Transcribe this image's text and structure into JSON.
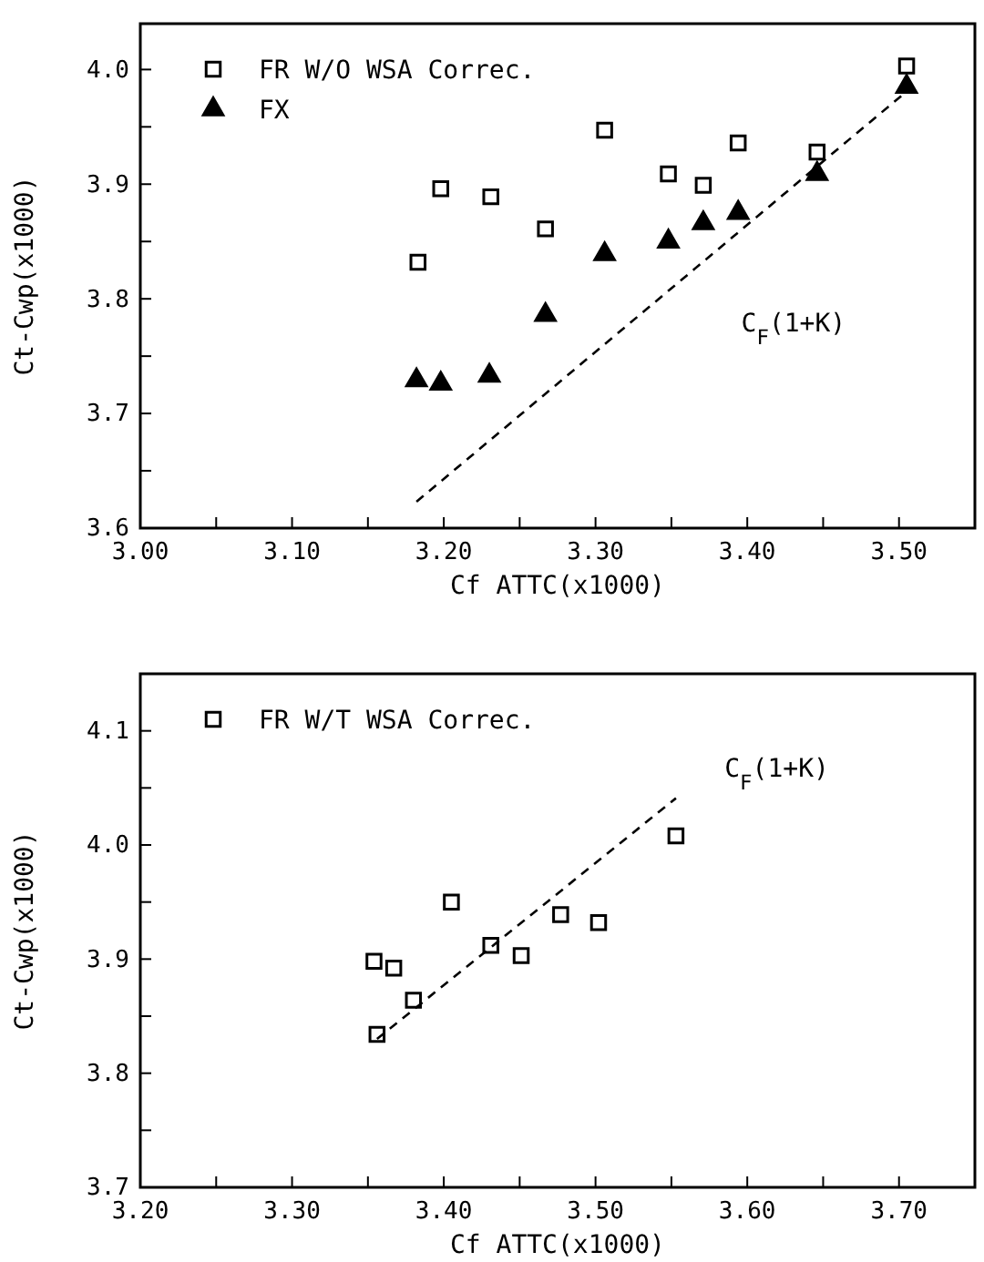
{
  "chart_data": [
    {
      "type": "scatter",
      "xlabel": "Cf ATTC(x1000)",
      "ylabel": "Ct-Cwp(x1000)",
      "xlim": [
        3.0,
        3.55
      ],
      "ylim": [
        3.6,
        4.04
      ],
      "xticks": [
        {
          "value": 3.0,
          "label": "3.00"
        },
        {
          "value": 3.05,
          "label": null
        },
        {
          "value": 3.1,
          "label": "3.10"
        },
        {
          "value": 3.15,
          "label": null
        },
        {
          "value": 3.2,
          "label": "3.20"
        },
        {
          "value": 3.25,
          "label": null
        },
        {
          "value": 3.3,
          "label": "3.30"
        },
        {
          "value": 3.35,
          "label": null
        },
        {
          "value": 3.4,
          "label": "3.40"
        },
        {
          "value": 3.45,
          "label": null
        },
        {
          "value": 3.5,
          "label": "3.50"
        }
      ],
      "yticks": [
        {
          "value": 3.6,
          "label": "3.6"
        },
        {
          "value": 3.65,
          "label": null
        },
        {
          "value": 3.7,
          "label": "3.7"
        },
        {
          "value": 3.75,
          "label": null
        },
        {
          "value": 3.8,
          "label": "3.8"
        },
        {
          "value": 3.85,
          "label": null
        },
        {
          "value": 3.9,
          "label": "3.9"
        },
        {
          "value": 3.95,
          "label": null
        },
        {
          "value": 4.0,
          "label": "4.0"
        }
      ],
      "legend": "top left",
      "grid": false,
      "series": [
        {
          "name": "FR W/O WSA Correc.",
          "color": "#000000",
          "marker": "square",
          "x": [
            3.183,
            3.198,
            3.231,
            3.267,
            3.306,
            3.348,
            3.371,
            3.394,
            3.446,
            3.505
          ],
          "values": [
            3.832,
            3.896,
            3.889,
            3.861,
            3.947,
            3.909,
            3.899,
            3.936,
            3.928,
            4.003
          ]
        },
        {
          "name": "FX",
          "color": "#000000",
          "marker": "triangle",
          "x": [
            3.182,
            3.198,
            3.23,
            3.267,
            3.306,
            3.348,
            3.371,
            3.394,
            3.446,
            3.505
          ],
          "values": [
            3.729,
            3.726,
            3.733,
            3.786,
            3.839,
            3.85,
            3.866,
            3.875,
            3.909,
            3.985
          ]
        },
        {
          "type": "line",
          "color": "#000000",
          "marker": "none",
          "line_style": "dashed",
          "x": [
            3.182,
            3.506
          ],
          "values": [
            3.623,
            3.982
          ]
        }
      ],
      "annotations": [
        "C$_{F}$(1+K)"
      ]
    },
    {
      "type": "scatter",
      "xlabel": "Cf ATTC(x1000)",
      "ylabel": "Ct-Cwp(x1000)",
      "xlim": [
        3.2,
        3.75
      ],
      "ylim": [
        3.7,
        4.15
      ],
      "xticks": [
        {
          "value": 3.2,
          "label": "3.20"
        },
        {
          "value": 3.25,
          "label": null
        },
        {
          "value": 3.3,
          "label": "3.30"
        },
        {
          "value": 3.35,
          "label": null
        },
        {
          "value": 3.4,
          "label": "3.40"
        },
        {
          "value": 3.45,
          "label": null
        },
        {
          "value": 3.5,
          "label": "3.50"
        },
        {
          "value": 3.55,
          "label": null
        },
        {
          "value": 3.6,
          "label": "3.60"
        },
        {
          "value": 3.65,
          "label": null
        },
        {
          "value": 3.7,
          "label": "3.70"
        }
      ],
      "yticks": [
        {
          "value": 3.7,
          "label": "3.7"
        },
        {
          "value": 3.75,
          "label": null
        },
        {
          "value": 3.8,
          "label": "3.8"
        },
        {
          "value": 3.85,
          "label": null
        },
        {
          "value": 3.9,
          "label": "3.9"
        },
        {
          "value": 3.95,
          "label": null
        },
        {
          "value": 4.0,
          "label": "4.0"
        },
        {
          "value": 4.05,
          "label": null
        },
        {
          "value": 4.1,
          "label": "4.1"
        }
      ],
      "legend": "top left",
      "grid": false,
      "series": [
        {
          "name": "FR W/T WSA Correc.",
          "color": "#000000",
          "marker": "square",
          "x": [
            3.354,
            3.367,
            3.38,
            3.356,
            3.405,
            3.431,
            3.451,
            3.477,
            3.502,
            3.553
          ],
          "values": [
            3.898,
            3.892,
            3.864,
            3.834,
            3.95,
            3.912,
            3.903,
            3.939,
            3.932,
            4.008
          ]
        },
        {
          "type": "line",
          "color": "#000000",
          "marker": "none",
          "line_style": "dashed",
          "x": [
            3.356,
            3.553
          ],
          "values": [
            3.83,
            4.041
          ]
        }
      ],
      "annotations": [
        "C$_{F}$(1+K)"
      ]
    }
  ]
}
